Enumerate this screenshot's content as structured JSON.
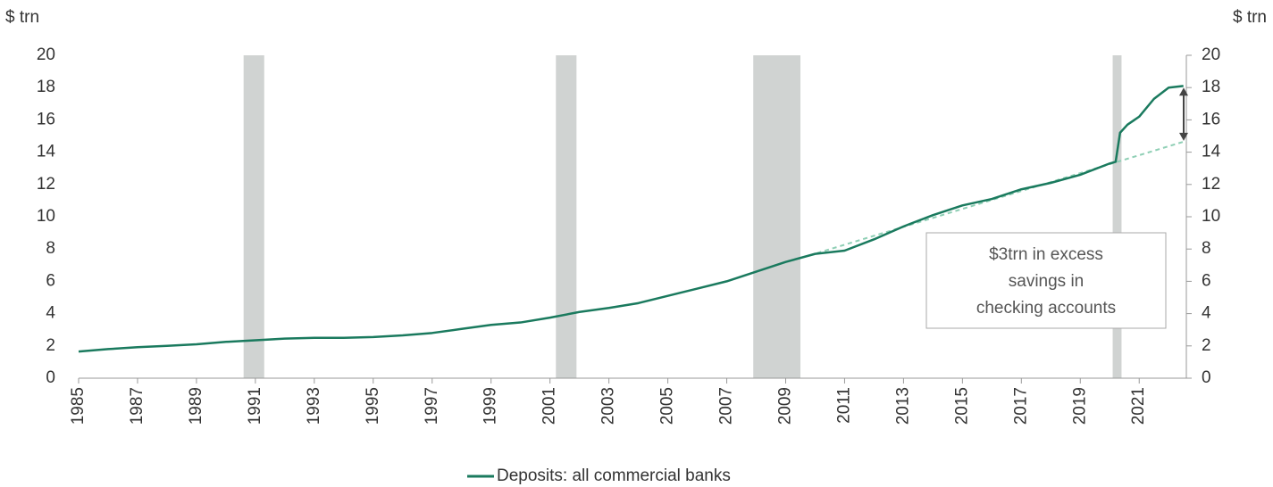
{
  "chart_data": {
    "type": "line",
    "y_label": "$ trn",
    "y2_label": "$ trn",
    "xlim": [
      1985,
      2022.6
    ],
    "xticks": [
      1985,
      1987,
      1989,
      1991,
      1993,
      1995,
      1997,
      1999,
      2001,
      2003,
      2005,
      2007,
      2009,
      2011,
      2013,
      2015,
      2017,
      2019,
      2021
    ],
    "ylim": [
      0,
      20
    ],
    "yticks": [
      0,
      2,
      4,
      6,
      8,
      10,
      12,
      14,
      16,
      18,
      20
    ],
    "y2lim": [
      0,
      20
    ],
    "y2ticks": [
      0,
      2,
      4,
      6,
      8,
      10,
      12,
      14,
      16,
      18,
      20
    ],
    "shaded_periods": [
      [
        1990.6,
        1991.3
      ],
      [
        2001.2,
        2001.9
      ],
      [
        2007.9,
        2009.5
      ],
      [
        2020.1,
        2020.4
      ]
    ],
    "series": [
      {
        "name": "Deposits: all commercial banks",
        "color": "#1a7a5e",
        "x": [
          1985,
          1986,
          1987,
          1988,
          1989,
          1990,
          1991,
          1992,
          1993,
          1994,
          1995,
          1996,
          1997,
          1998,
          1999,
          2000,
          2001,
          2002,
          2003,
          2004,
          2005,
          2006,
          2007,
          2008,
          2009,
          2010,
          2011,
          2012,
          2013,
          2014,
          2015,
          2016,
          2017,
          2018,
          2019,
          2020,
          2020.2,
          2020.35,
          2020.6,
          2021,
          2021.5,
          2022,
          2022.5
        ],
        "values": [
          1.65,
          1.8,
          1.92,
          2.0,
          2.1,
          2.25,
          2.35,
          2.45,
          2.5,
          2.5,
          2.55,
          2.65,
          2.8,
          3.05,
          3.3,
          3.45,
          3.75,
          4.1,
          4.35,
          4.65,
          5.1,
          5.55,
          6.0,
          6.6,
          7.2,
          7.7,
          7.9,
          8.6,
          9.4,
          10.1,
          10.7,
          11.1,
          11.7,
          12.1,
          12.6,
          13.3,
          13.4,
          15.2,
          15.7,
          16.2,
          17.3,
          18.0,
          18.1
        ]
      }
    ],
    "trend": {
      "color": "#8fcfb5",
      "x": [
        2009.8,
        2022.6
      ],
      "values": [
        7.6,
        14.7
      ]
    },
    "arrow": {
      "x": 2022.6,
      "values": [
        18.0,
        14.7
      ]
    },
    "annotation": [
      "$3trn in excess",
      "savings in",
      "checking accounts"
    ]
  }
}
